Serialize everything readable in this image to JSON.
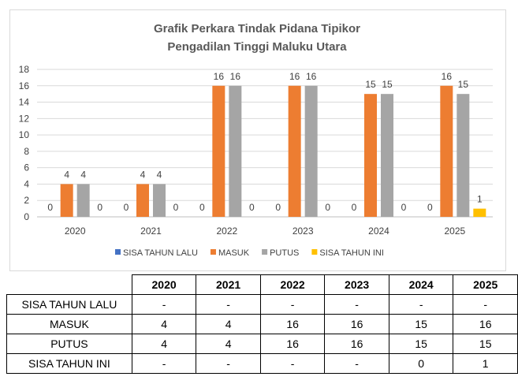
{
  "chart_data": {
    "type": "bar",
    "title_lines": [
      "Grafik Perkara Tindak Pidana Tipikor",
      "Pengadilan Tinggi Maluku Utara"
    ],
    "categories": [
      "2020",
      "2021",
      "2022",
      "2023",
      "2024",
      "2025"
    ],
    "series": [
      {
        "name": "SISA TAHUN LALU",
        "color": "#4472c4",
        "values": [
          0,
          0,
          0,
          0,
          0,
          0
        ]
      },
      {
        "name": "MASUK",
        "color": "#ed7d31",
        "values": [
          4,
          4,
          16,
          16,
          15,
          16
        ]
      },
      {
        "name": "PUTUS",
        "color": "#a5a5a5",
        "values": [
          4,
          4,
          16,
          16,
          15,
          15
        ]
      },
      {
        "name": "SISA TAHUN INI",
        "color": "#ffc000",
        "values": [
          0,
          0,
          0,
          0,
          0,
          1
        ]
      }
    ],
    "ylim": [
      0,
      18
    ],
    "yticks": [
      0,
      2,
      4,
      6,
      8,
      10,
      12,
      14,
      16,
      18
    ],
    "grid": true,
    "legend_position": "bottom",
    "xlabel": "",
    "ylabel": ""
  },
  "table": {
    "headers": [
      "2020",
      "2021",
      "2022",
      "2023",
      "2024",
      "2025"
    ],
    "rows": [
      {
        "label": "SISA TAHUN LALU",
        "cells": [
          "-",
          "-",
          "-",
          "-",
          "-",
          "-"
        ]
      },
      {
        "label": "MASUK",
        "cells": [
          "4",
          "4",
          "16",
          "16",
          "15",
          "16"
        ]
      },
      {
        "label": "PUTUS",
        "cells": [
          "4",
          "4",
          "16",
          "16",
          "15",
          "15"
        ]
      },
      {
        "label": "SISA TAHUN INI",
        "cells": [
          "-",
          "-",
          "-",
          "-",
          "0",
          "1"
        ]
      }
    ]
  }
}
